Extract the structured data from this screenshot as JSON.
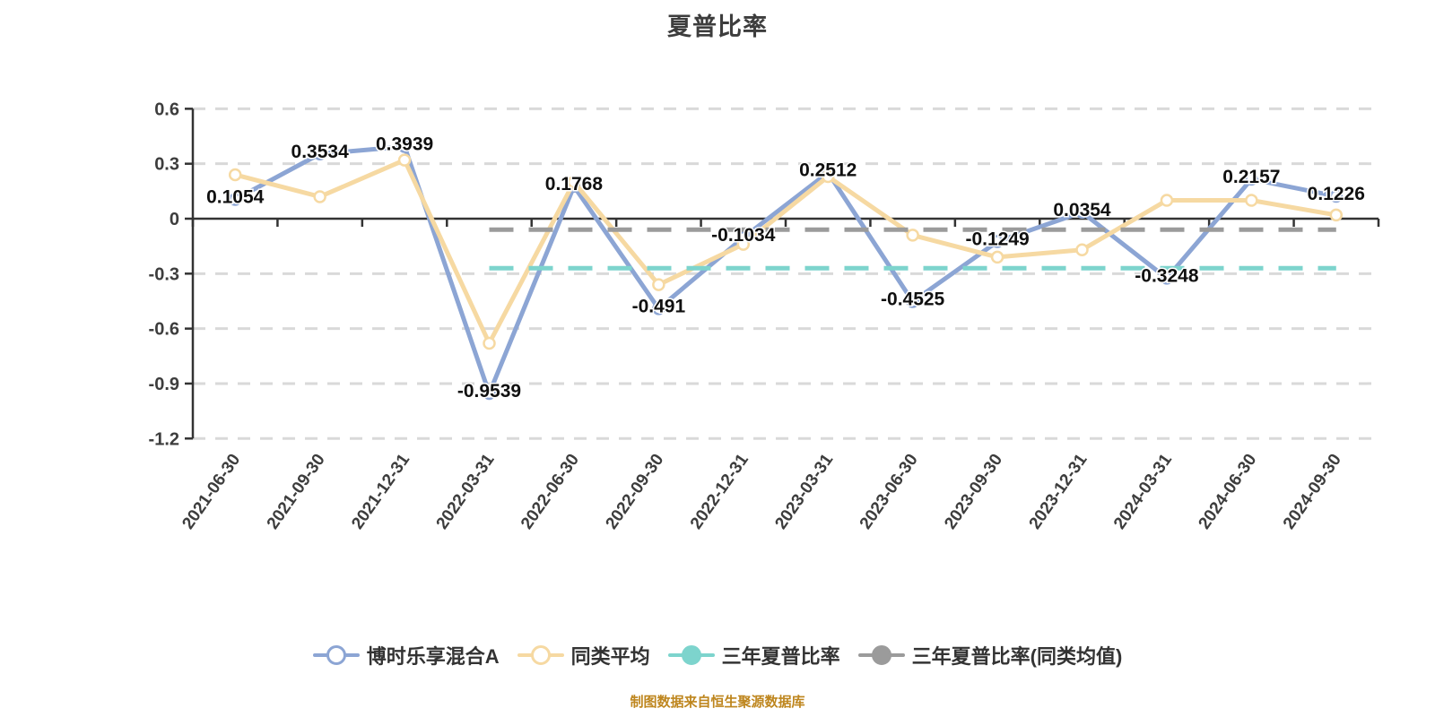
{
  "title": "夏普比率",
  "footer": "制图数据来自恒生聚源数据库",
  "colors": {
    "fund": "#8CA5D4",
    "peer": "#F6D9A2",
    "threeYear": "#7DD4CD",
    "threeYearPeer": "#9B9B9B",
    "axis": "#333333",
    "grid": "#D9D9D9",
    "dataLabel": "#101010",
    "tickText": "#3D3D3D",
    "title": "#3D3D3D",
    "footerText": "#BE861E",
    "markerFill": "#FFFFFF"
  },
  "legend": {
    "items": [
      {
        "label": "博时乐享混合A",
        "marker": "hollow",
        "color_key": "fund"
      },
      {
        "label": "同类平均",
        "marker": "hollow",
        "color_key": "peer"
      },
      {
        "label": "三年夏普比率",
        "marker": "solid",
        "color_key": "threeYear"
      },
      {
        "label": "三年夏普比率(同类均值)",
        "marker": "solid",
        "color_key": "threeYearPeer"
      }
    ]
  },
  "chart_data": {
    "type": "line",
    "title": "夏普比率",
    "categories": [
      "2021-06-30",
      "2021-09-30",
      "2021-12-31",
      "2022-03-31",
      "2022-06-30",
      "2022-09-30",
      "2022-12-31",
      "2023-03-31",
      "2023-06-30",
      "2023-09-30",
      "2023-12-31",
      "2024-03-31",
      "2024-06-30",
      "2024-09-30"
    ],
    "series": [
      {
        "name": "博时乐享混合A",
        "type": "line",
        "color_key": "fund",
        "show_labels": true,
        "values": [
          0.1054,
          0.3534,
          0.3939,
          -0.9539,
          0.1768,
          -0.491,
          -0.1034,
          0.2512,
          -0.4525,
          -0.1249,
          0.0354,
          -0.3248,
          0.2157,
          0.1226
        ]
      },
      {
        "name": "同类平均",
        "type": "line",
        "color_key": "peer",
        "show_labels": false,
        "values": [
          0.24,
          0.12,
          0.32,
          -0.68,
          0.2,
          -0.36,
          -0.14,
          0.23,
          -0.09,
          -0.21,
          -0.17,
          0.1,
          0.1,
          0.02
        ]
      },
      {
        "name": "三年夏普比率",
        "type": "constant-dashed-line",
        "color_key": "threeYear",
        "value": -0.27,
        "from_category": "2022-03-31",
        "to_category": "2024-09-30"
      },
      {
        "name": "三年夏普比率(同类均值)",
        "type": "constant-dashed-line",
        "color_key": "threeYearPeer",
        "value": -0.06,
        "from_category": "2022-03-31",
        "to_category": "2024-09-30"
      }
    ],
    "ylim": [
      -1.2,
      0.6
    ],
    "yticks": [
      0.6,
      0.3,
      0,
      -0.3,
      -0.6,
      -0.9,
      -1.2
    ],
    "grid": true,
    "legend_position": "bottom"
  }
}
